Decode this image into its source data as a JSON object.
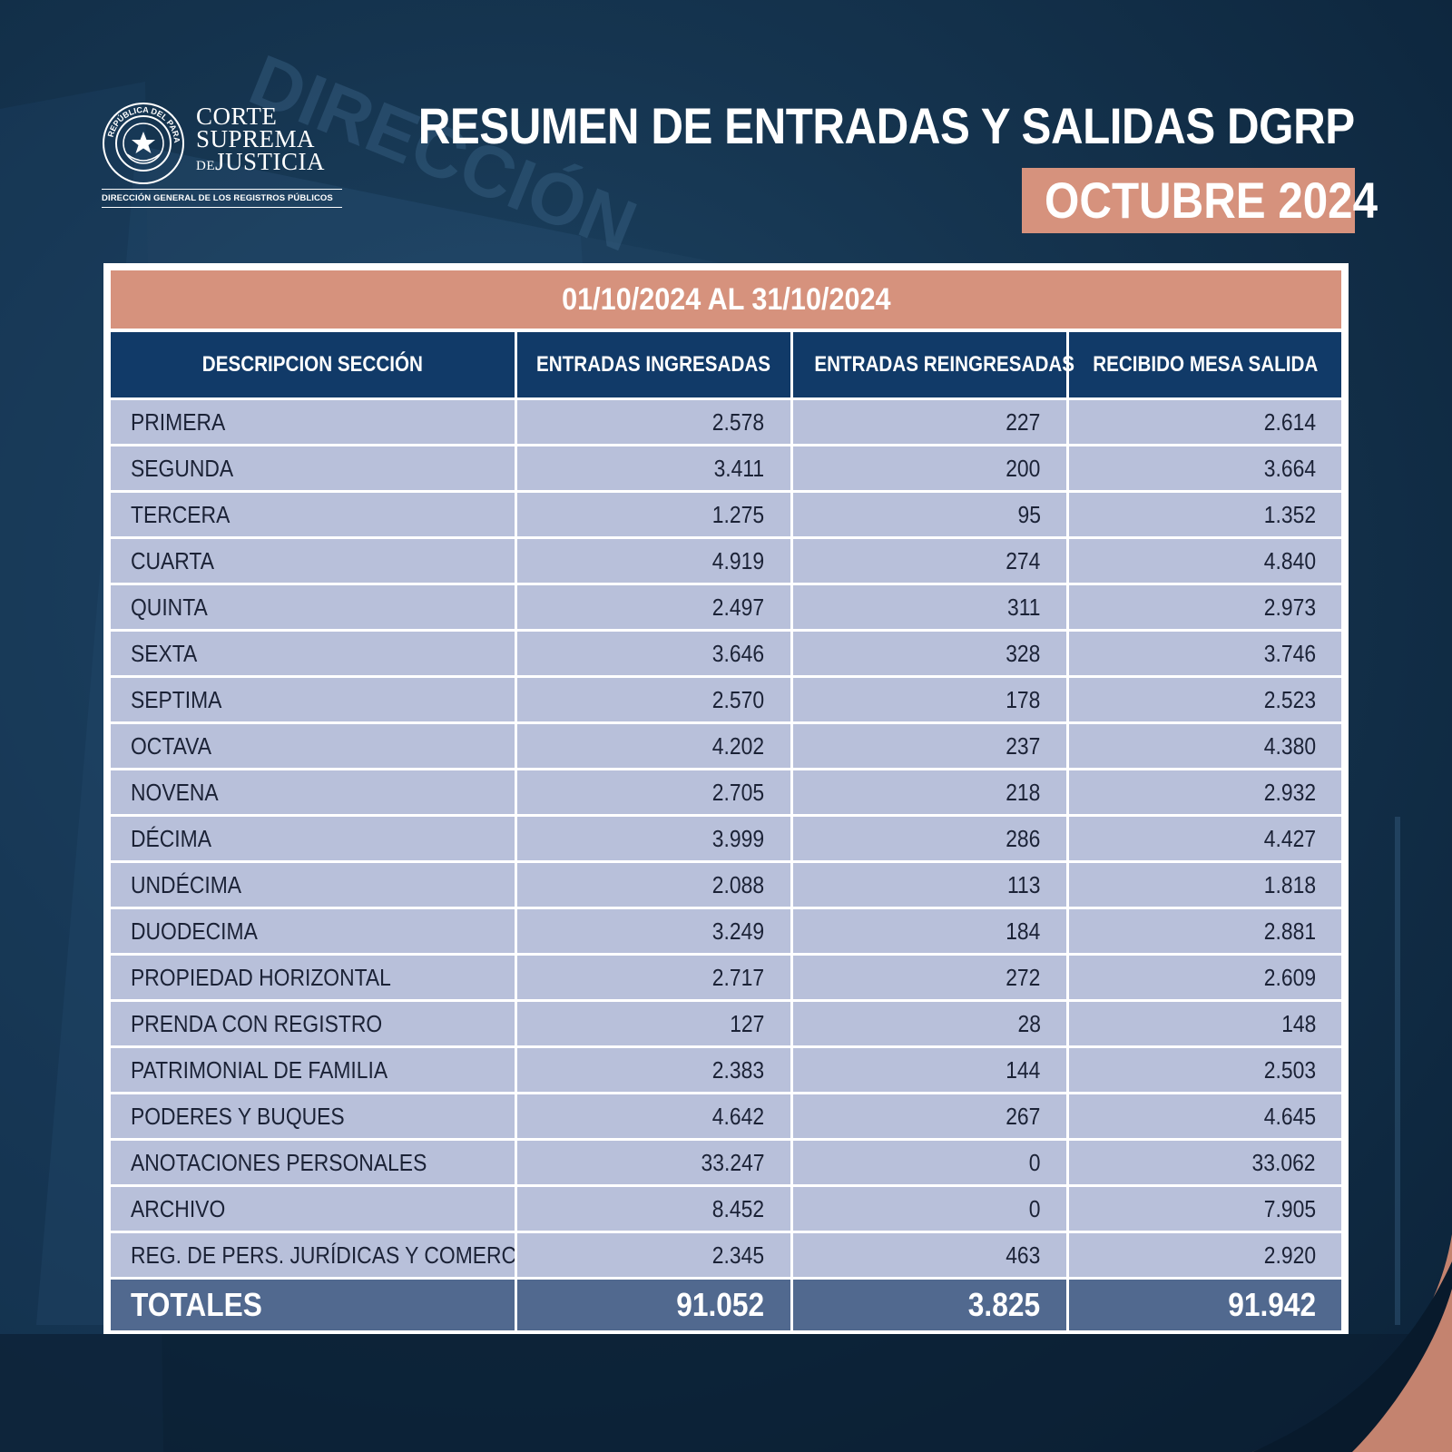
{
  "logo": {
    "line1": "CORTE",
    "line2": "SUPREMA",
    "line3_small": "DE",
    "line3": "JUSTICIA",
    "seal_text": "REPÚBLICA DEL PARAGUAY",
    "subtitle": "DIRECCIÓN GENERAL DE LOS REGISTROS PÚBLICOS"
  },
  "header": {
    "title": "RESUMEN DE ENTRADAS Y SALIDAS DGRP",
    "month": "OCTUBRE 2024"
  },
  "table": {
    "date_range": "01/10/2024 AL 31/10/2024",
    "columns": [
      "DESCRIPCION SECCIÓN",
      "ENTRADAS INGRESADAS",
      "ENTRADAS REINGRESADAS",
      "RECIBIDO MESA SALIDA"
    ],
    "rows": [
      [
        "PRIMERA",
        "2.578",
        "227",
        "2.614"
      ],
      [
        "SEGUNDA",
        "3.411",
        "200",
        "3.664"
      ],
      [
        "TERCERA",
        "1.275",
        "95",
        "1.352"
      ],
      [
        "CUARTA",
        "4.919",
        "274",
        "4.840"
      ],
      [
        "QUINTA",
        "2.497",
        "311",
        "2.973"
      ],
      [
        "SEXTA",
        "3.646",
        "328",
        "3.746"
      ],
      [
        "SEPTIMA",
        "2.570",
        "178",
        "2.523"
      ],
      [
        "OCTAVA",
        "4.202",
        "237",
        "4.380"
      ],
      [
        "NOVENA",
        "2.705",
        "218",
        "2.932"
      ],
      [
        "DÉCIMA",
        "3.999",
        "286",
        "4.427"
      ],
      [
        "UNDÉCIMA",
        "2.088",
        "113",
        "1.818"
      ],
      [
        "DUODECIMA",
        "3.249",
        "184",
        "2.881"
      ],
      [
        "PROPIEDAD HORIZONTAL",
        "2.717",
        "272",
        "2.609"
      ],
      [
        "PRENDA CON REGISTRO",
        "127",
        "28",
        "148"
      ],
      [
        "PATRIMONIAL DE FAMILIA",
        "2.383",
        "144",
        "2.503"
      ],
      [
        "PODERES Y BUQUES",
        "4.642",
        "267",
        "4.645"
      ],
      [
        "ANOTACIONES PERSONALES",
        "33.247",
        "0",
        "33.062"
      ],
      [
        "ARCHIVO",
        "8.452",
        "0",
        "7.905"
      ],
      [
        "REG. DE PERS. JURÍDICAS Y COMERCIO",
        "2.345",
        "463",
        "2.920"
      ]
    ],
    "totals": [
      "TOTALES",
      "91.052",
      "3.825",
      "91.942"
    ]
  },
  "colors": {
    "background": "#15344f",
    "accent": "#d6927d",
    "header_navy": "#113a68",
    "row": "#b8c0da",
    "total_row": "#51698f"
  }
}
